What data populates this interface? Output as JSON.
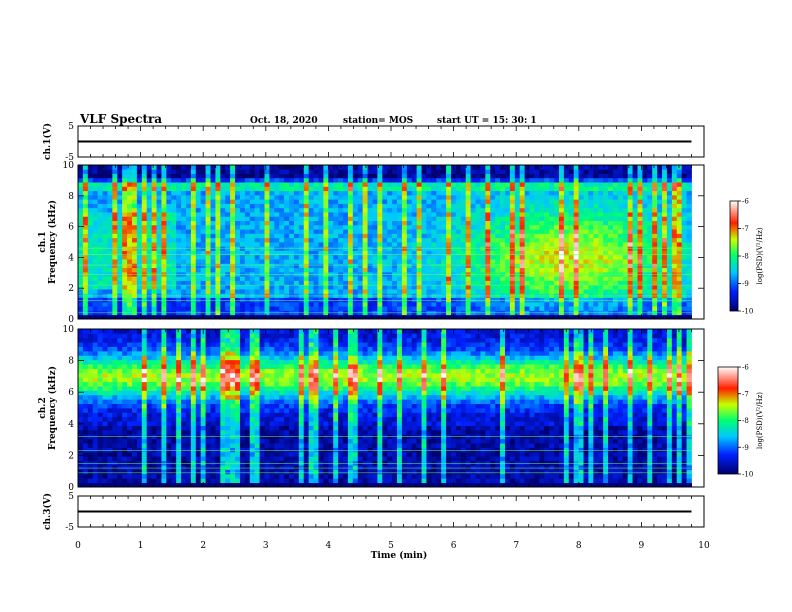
{
  "header": {
    "title": "VLF Spectra",
    "date": "Oct. 18, 2020",
    "station": "station= MOS",
    "start": "start  UT =  15: 30: 1"
  },
  "chart_data": [
    {
      "type": "line",
      "panel": "ch1-waveform",
      "ylabel": "ch.1(V)",
      "ylim": [
        -5,
        5
      ],
      "yticks": [
        "5",
        "-5"
      ],
      "x": [
        0,
        9.8
      ],
      "values": [
        0,
        0
      ]
    },
    {
      "type": "heatmap",
      "panel": "ch1-spectrogram",
      "ylabel": "ch.1\nFrequency (kHz)",
      "ylim": [
        0,
        10
      ],
      "yticks": [
        "0",
        "2",
        "4",
        "6",
        "8",
        "10"
      ],
      "xlim": [
        0,
        9.8
      ],
      "colorbar": {
        "label": "log(PSD)(V²/Hz)",
        "range": [
          -10,
          -6
        ],
        "ticks": [
          "-6",
          "-7",
          "-8",
          "-9",
          "-10"
        ]
      }
    },
    {
      "type": "heatmap",
      "panel": "ch2-spectrogram",
      "ylabel": "ch.2\nFrequency (kHz)",
      "ylim": [
        0,
        10
      ],
      "yticks": [
        "0",
        "2",
        "4",
        "6",
        "8",
        "10"
      ],
      "xlim": [
        0,
        9.8
      ],
      "colorbar": {
        "label": "log(PSD)(V²/Hz)",
        "range": [
          -10,
          -6
        ],
        "ticks": [
          "-6",
          "-7",
          "-8",
          "-9",
          "-10"
        ]
      }
    },
    {
      "type": "line",
      "panel": "ch3-waveform",
      "ylabel": "ch.3(V)",
      "ylim": [
        -5,
        5
      ],
      "yticks": [
        "5",
        "-5"
      ],
      "x": [
        0,
        9.8
      ],
      "values": [
        0,
        0
      ]
    }
  ],
  "xaxis": {
    "label": "Time (min)",
    "xlim": [
      0,
      10
    ],
    "ticks": [
      "0",
      "1",
      "2",
      "3",
      "4",
      "5",
      "6",
      "7",
      "8",
      "9",
      "10"
    ]
  }
}
